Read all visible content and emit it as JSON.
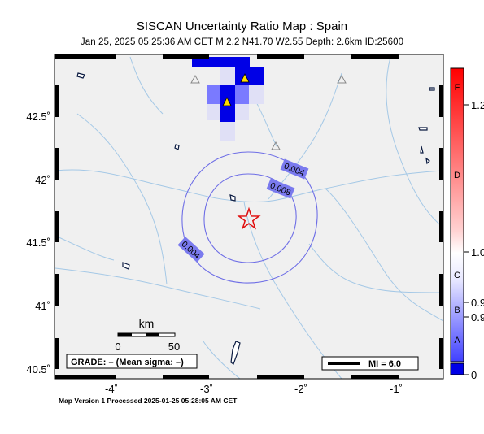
{
  "map": {
    "title": "SISCAN Uncertainty Ratio Map : Spain",
    "subtitle": "Jan 25, 2025 05:25:36 AM CET   M 2.2   N41.70 W2.55   Depth: 2.6km   ID:25600",
    "footer": "Map Version 1 Processed 2025-01-25 05:28:05 AM CET",
    "lon_ticks": [
      "-4˚",
      "-3˚",
      "-2˚",
      "-1˚"
    ],
    "lat_ticks": [
      "42.5˚",
      "42˚",
      "41.5˚",
      "41˚",
      "40.5˚"
    ],
    "contour_labels": [
      "0.004",
      "0.008",
      "0.004"
    ],
    "epicenter": {
      "lat": 41.7,
      "lon": -2.55
    },
    "scale_bar": {
      "unit": "km",
      "labels": [
        "0",
        "50"
      ]
    },
    "grade_box": "GRADE: – (Mean sigma: –)",
    "mi_legend": "MI = 6.0",
    "colors": {
      "land": "#f0f0f0",
      "rivers": "#a4c8e6",
      "contours": "#6e6ee6",
      "cell_dark": "#0000e6",
      "cell_mid": "#7a7aff",
      "cell_light": "#e0e0f6",
      "epicenter": "#e01010"
    }
  },
  "colorbar": {
    "grades": [
      "F",
      "D",
      "C",
      "B",
      "A"
    ],
    "values": [
      "1.2",
      "1.0",
      "0.9",
      "0.9",
      "0"
    ]
  }
}
